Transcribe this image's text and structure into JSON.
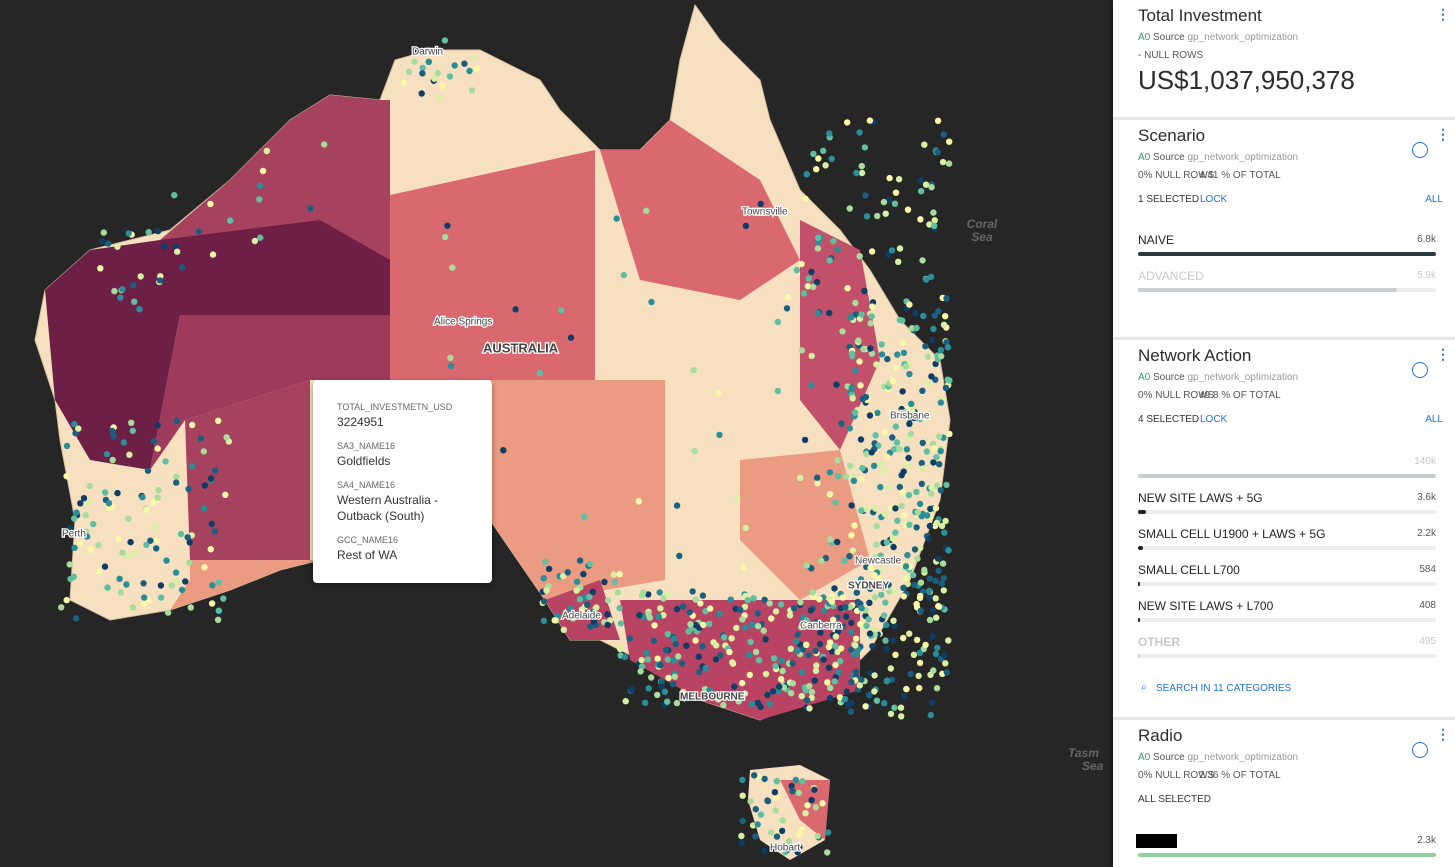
{
  "map": {
    "labels": [
      "Darwin",
      "Townsville",
      "Coral",
      "Sea",
      "Alice Springs",
      "AUSTRALIA",
      "Brisbane",
      "Perth",
      "Adelaide",
      "Newcastle",
      "SYDNEY",
      "Canberra",
      "MELBOURNE",
      "Tasm",
      "Sea",
      "Hobart"
    ],
    "tooltip": [
      {
        "key": "TOTAL_INVESTMETN_USD",
        "value": "3224951"
      },
      {
        "key": "SA3_NAME16",
        "value": "Goldfields"
      },
      {
        "key": "SA4_NAME16",
        "value": "Western Australia - Outback (South)"
      },
      {
        "key": "GCC_NAME16",
        "value": "Rest of WA"
      }
    ]
  },
  "widgets": [
    {
      "title": "Total Investment",
      "layer": "A0",
      "source_label": "Source",
      "source": "gp_network_optimization",
      "null_rows": "- NULL ROWS",
      "value": "US$1,037,950,378"
    },
    {
      "title": "Scenario",
      "layer": "A0",
      "source_label": "Source",
      "source": "gp_network_optimization",
      "null_rows": "0% NULL ROWS",
      "of_total": "4.41 % OF TOTAL",
      "selected_text": "1 SELECTED",
      "lock": "LOCK",
      "all": "ALL",
      "color": "#2b3a42",
      "categories": [
        "NAIVE",
        "ADVANCED"
      ],
      "values": [
        6800,
        5900
      ],
      "value_labels": [
        "6.8k",
        "5.9k"
      ],
      "selected": [
        true,
        false
      ]
    },
    {
      "title": "Network Action",
      "layer": "A0",
      "source_label": "Source",
      "source": "gp_network_optimization",
      "null_rows": "0% NULL ROWS",
      "of_total": "49.8 % OF TOTAL",
      "selected_text": "4 SELECTED",
      "lock": "LOCK",
      "all": "ALL",
      "color": "#1d2327",
      "categories": [
        null,
        "NEW SITE LAWS + 5G",
        "SMALL CELL U1900 + LAWS + 5G",
        "SMALL CELL L700",
        "NEW SITE LAWS + L700",
        "OTHER"
      ],
      "values": [
        140000,
        3600,
        2200,
        584,
        408,
        495
      ],
      "value_labels": [
        "140k",
        "3.6k",
        "2.2k",
        "584",
        "408",
        "495"
      ],
      "selected": [
        false,
        true,
        true,
        true,
        true,
        false
      ],
      "search": "SEARCH IN 11 CATEGORIES"
    },
    {
      "title": "Radio",
      "layer": "A0",
      "source_label": "Source",
      "source": "gp_network_optimization",
      "null_rows": "0% NULL ROWS",
      "of_total": "2.36 % OF TOTAL",
      "selected_text": "ALL SELECTED",
      "color": "#8fd19e",
      "categories": [
        null
      ],
      "values": [
        2300
      ],
      "value_labels": [
        "2.3k"
      ],
      "selected": [
        true
      ]
    }
  ]
}
